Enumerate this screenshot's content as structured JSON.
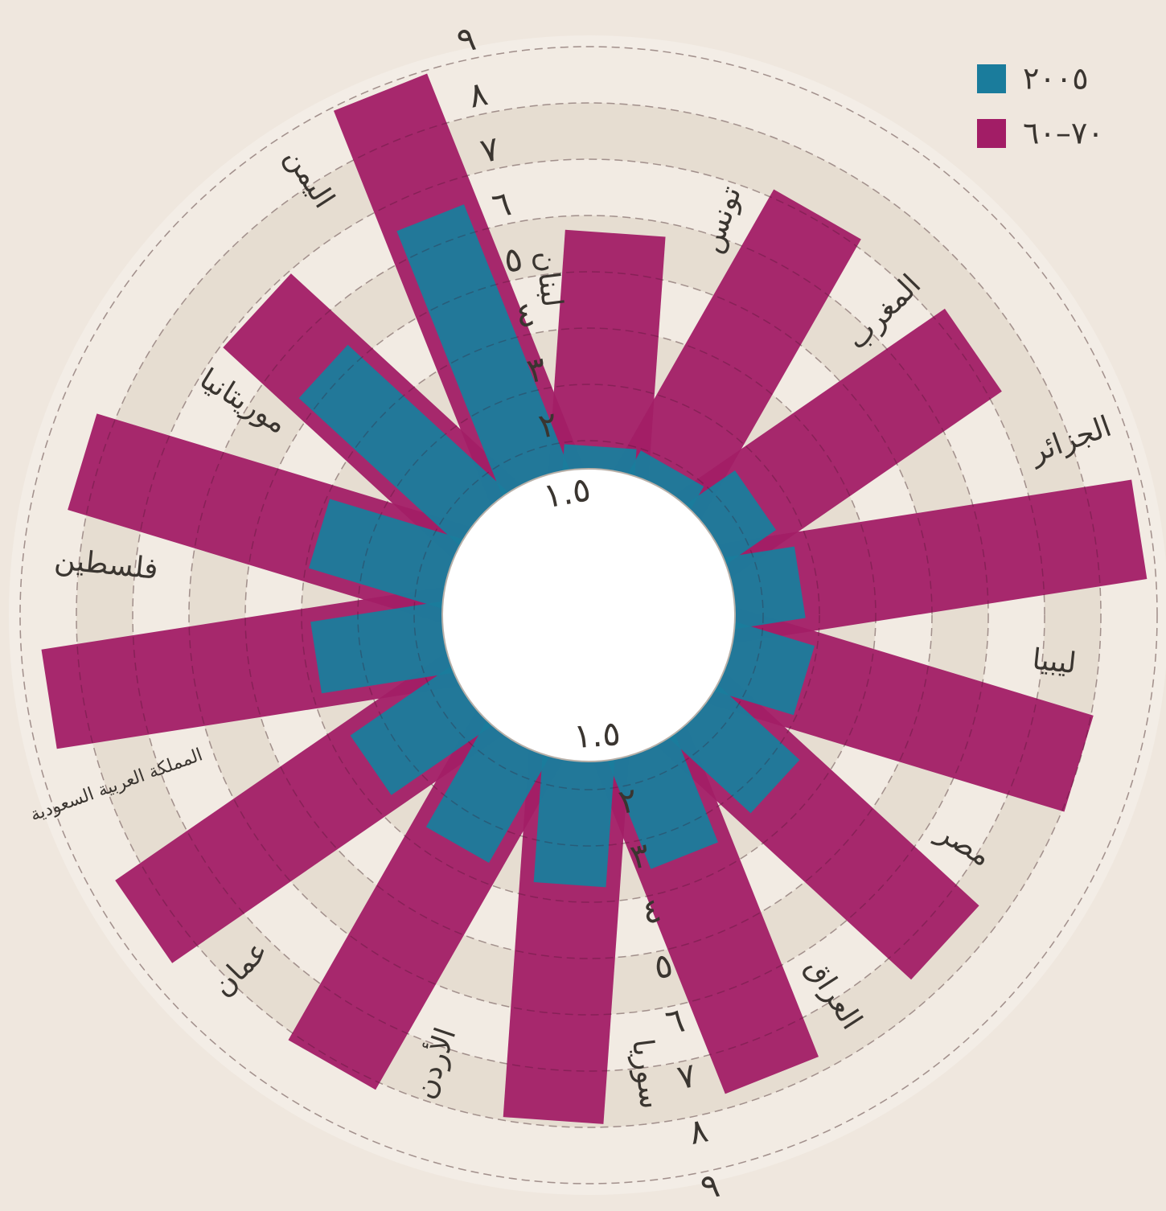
{
  "chart_data": {
    "type": "radial_bar",
    "categories": [
      "لبنان",
      "تونس",
      "المغرب",
      "الجزائر",
      "ليبيا",
      "مصر",
      "العراق",
      "سوريا",
      "الأردن",
      "عمان",
      "المملكة العربية السعودية",
      "فلسطين",
      "موريتانيا",
      "اليمن"
    ],
    "series": [
      {
        "name": "٢٠٠٥",
        "color": "#1a7c9c",
        "values": [
          1.9,
          1.9,
          2.5,
          2.7,
          2.9,
          3.4,
          3.5,
          3.7,
          3.6,
          3.6,
          3.8,
          3.9,
          5.3,
          6.5
        ]
      },
      {
        "name": "٦٠–٧٠",
        "color": "#a21d66",
        "values": [
          5.7,
          7.1,
          7.2,
          8.8,
          8.0,
          7.5,
          7.7,
          7.9,
          8.1,
          8.5,
          8.6,
          8.3,
          6.9,
          8.9
        ]
      }
    ],
    "ylim": [
      1.5,
      9
    ],
    "yticks": [
      {
        "value": 1.5,
        "label": "١.٥"
      },
      {
        "value": 2,
        "label": "٢"
      },
      {
        "value": 3,
        "label": "٣"
      },
      {
        "value": 4,
        "label": "٤"
      },
      {
        "value": 5,
        "label": "٥"
      },
      {
        "value": 6,
        "label": "٦"
      },
      {
        "value": 7,
        "label": "٧"
      },
      {
        "value": 8,
        "label": "٨"
      },
      {
        "value": 9,
        "label": "٩"
      }
    ],
    "grid": true,
    "legend": "top-right"
  }
}
